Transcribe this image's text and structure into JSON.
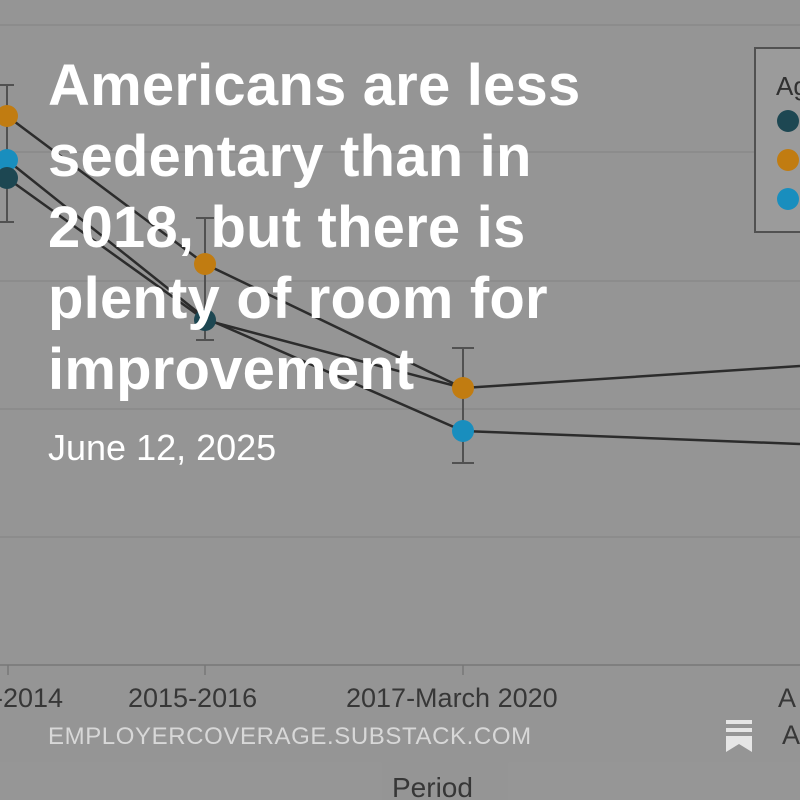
{
  "post": {
    "title": "Americans are less sedentary than in 2018, but there is plenty of room for improvement",
    "date": "June 12, 2025",
    "publication": "EMPLOYERCOVERAGE.SUBSTACK.COM",
    "bookmark_icon": "bookmark-icon"
  },
  "background_chart": {
    "x_tick_labels": [
      "-2014",
      "2015-2016",
      "2017-March 2020",
      "A",
      "A"
    ],
    "x_axis_label": "Period",
    "legend_title_fragment": "Ag",
    "colors": {
      "series_dark": "#1f4a56",
      "series_orange": "#c98212",
      "series_blue": "#1b94c6",
      "line": "#2a2a2a"
    }
  }
}
